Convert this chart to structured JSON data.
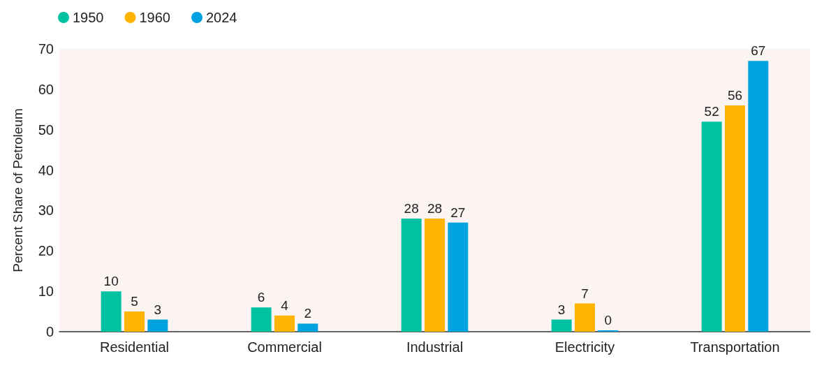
{
  "chart_data": {
    "type": "bar",
    "ylabel": "Percent Share of Petroleum",
    "categories": [
      "Residential",
      "Commercial",
      "Industrial",
      "Electricity",
      "Transportation"
    ],
    "series": [
      {
        "name": "1950",
        "color": "#00c2a2",
        "values": [
          10,
          6,
          28,
          3,
          52
        ]
      },
      {
        "name": "1960",
        "color": "#ffb400",
        "values": [
          5,
          4,
          28,
          7,
          56
        ]
      },
      {
        "name": "2024",
        "color": "#00a3e0",
        "values": [
          3,
          2,
          27,
          0,
          67
        ]
      }
    ],
    "ylim": [
      0,
      70
    ],
    "yticks": [
      0,
      10,
      20,
      30,
      40,
      50,
      60,
      70
    ],
    "grid": false,
    "legend": "top left",
    "data_labels": true
  }
}
